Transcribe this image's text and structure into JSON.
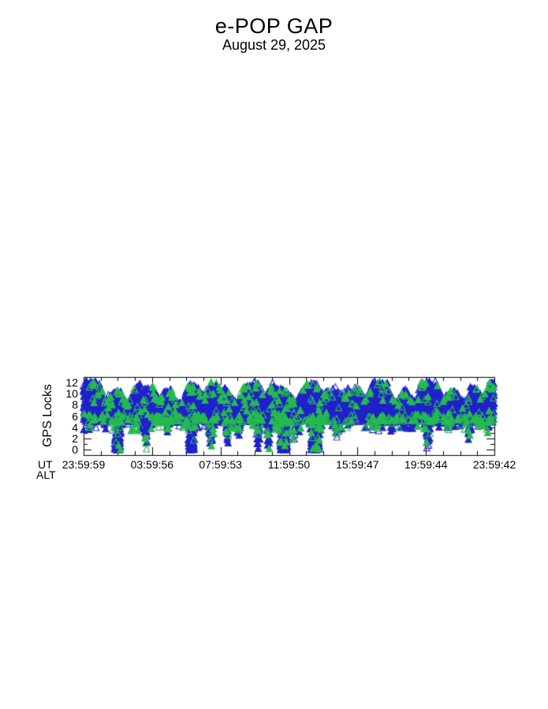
{
  "chart_data": {
    "type": "scatter",
    "title": "e-POP GAP",
    "subtitle": "August 29, 2025",
    "ylabel": "GPS Locks",
    "x_axis_row1_label": "UT",
    "x_axis_row2_label": "ALT",
    "x_tick_labels": [
      "23:59:59",
      "03:59:56",
      "07:59:53",
      "11:59:50",
      "15:59:47",
      "19:59:44",
      "23:59:42"
    ],
    "x_tick_hours": [
      0,
      4,
      8,
      12,
      16,
      20,
      24
    ],
    "x_minor_tick_step_hours": 1,
    "xlim_hours": [
      0,
      24
    ],
    "y_ticks": [
      0,
      2,
      4,
      6,
      8,
      10,
      12
    ],
    "y_minor_tick_step": 1,
    "ylim": [
      0,
      12
    ],
    "axis_value_range": [
      -1,
      13
    ],
    "grid": false,
    "legend": null,
    "marker": "triangle-up",
    "colors": {
      "primary_blue": "#2222cc",
      "secondary_green": "#25bb4f",
      "axis": "#000000",
      "background": "#ffffff"
    },
    "band": {
      "y_bottom": 5,
      "y_top": 12,
      "top_notch_min": 9,
      "green_fraction_core": 0.05,
      "green_fraction_edge": 0.27,
      "description": "Dense band of GPS lock counts oscillating between ~5 and ~12 locks across the whole day, with green markers fringing the band edges"
    },
    "top_notches_hours": [
      1.3,
      2.6,
      4.4,
      5.6,
      7.0,
      8.9,
      10.6,
      12.4,
      14.0,
      16.5,
      18.2,
      19.3,
      21.0,
      22.2,
      23.3
    ],
    "band_gaps_hours": [
      [
        3.35,
        3.95
      ]
    ],
    "sparse_open_marker_regions_hours": [
      [
        14.3,
        16.3
      ]
    ],
    "dips": [
      {
        "hour": 0.35,
        "min_locks": 3.5,
        "half_width_hours": 0.1,
        "dense": false,
        "open": false,
        "tall": false
      },
      {
        "hour": 2.0,
        "min_locks": 0,
        "half_width_hours": 0.25,
        "dense": true,
        "open": false,
        "tall": false
      },
      {
        "hour": 3.65,
        "min_locks": 0,
        "half_width_hours": 0.12,
        "dense": false,
        "open": false,
        "tall": true
      },
      {
        "hour": 4.9,
        "min_locks": 3,
        "half_width_hours": 0.12,
        "dense": false,
        "open": false,
        "tall": false
      },
      {
        "hour": 6.3,
        "min_locks": 0,
        "half_width_hours": 0.23,
        "dense": true,
        "open": false,
        "tall": false
      },
      {
        "hour": 7.45,
        "min_locks": 0.5,
        "half_width_hours": 0.2,
        "dense": false,
        "open": false,
        "tall": false
      },
      {
        "hour": 8.4,
        "min_locks": 1,
        "half_width_hours": 0.15,
        "dense": false,
        "open": false,
        "tall": false
      },
      {
        "hour": 9.05,
        "min_locks": 2.5,
        "half_width_hours": 0.15,
        "dense": false,
        "open": false,
        "tall": false
      },
      {
        "hour": 10.2,
        "min_locks": 0,
        "half_width_hours": 0.15,
        "dense": false,
        "open": false,
        "tall": false
      },
      {
        "hour": 10.8,
        "min_locks": 0,
        "half_width_hours": 0.15,
        "dense": false,
        "open": false,
        "tall": false
      },
      {
        "hour": 11.7,
        "min_locks": 0,
        "half_width_hours": 0.32,
        "dense": true,
        "open": false,
        "tall": false
      },
      {
        "hour": 12.3,
        "min_locks": 1.5,
        "half_width_hours": 0.15,
        "dense": false,
        "open": false,
        "tall": false
      },
      {
        "hour": 13.55,
        "min_locks": 0,
        "half_width_hours": 0.37,
        "dense": true,
        "open": false,
        "tall": false
      },
      {
        "hour": 14.8,
        "min_locks": 2.2,
        "half_width_hours": 0.18,
        "dense": false,
        "open": true,
        "tall": false
      },
      {
        "hour": 16.9,
        "min_locks": 3.5,
        "half_width_hours": 0.1,
        "dense": false,
        "open": false,
        "tall": false
      },
      {
        "hour": 18.0,
        "min_locks": 3.2,
        "half_width_hours": 0.12,
        "dense": false,
        "open": false,
        "tall": false
      },
      {
        "hour": 19.2,
        "min_locks": 3.8,
        "half_width_hours": 0.1,
        "dense": false,
        "open": false,
        "tall": false
      },
      {
        "hour": 20.1,
        "min_locks": 0,
        "half_width_hours": 0.18,
        "dense": false,
        "open": false,
        "tall": false
      },
      {
        "hour": 21.3,
        "min_locks": 3.5,
        "half_width_hours": 0.12,
        "dense": false,
        "open": false,
        "tall": false
      },
      {
        "hour": 22.5,
        "min_locks": 1.5,
        "half_width_hours": 0.12,
        "dense": false,
        "open": false,
        "tall": false
      },
      {
        "hour": 23.6,
        "min_locks": 3,
        "half_width_hours": 0.1,
        "dense": false,
        "open": false,
        "tall": false
      }
    ]
  }
}
